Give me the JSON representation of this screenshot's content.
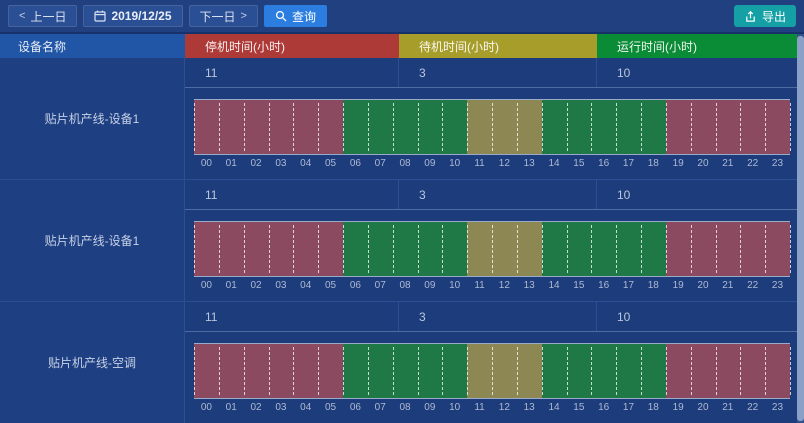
{
  "toolbar": {
    "prev_chevron": "<",
    "prev_label": "上一日",
    "date_value": "2019/12/25",
    "next_label": "下一日",
    "next_chevron": ">",
    "query_label": "查询",
    "export_label": "导出"
  },
  "colors": {
    "query_button": "#2b7de0",
    "export_button": "#14a0a5",
    "header_stop": "#ad3a37",
    "header_standby": "#a79d2a",
    "header_run": "#0a8b36",
    "status": {
      "stop": "#8b4a60",
      "standby": "#8d8853",
      "run": "#1e7947"
    }
  },
  "table": {
    "name_header": "设备名称",
    "columns": [
      {
        "key": "stop",
        "label": "停机时间(小时)",
        "color": "#ad3a37"
      },
      {
        "key": "standby",
        "label": "待机时间(小时)",
        "color": "#a79d2a"
      },
      {
        "key": "run",
        "label": "运行时间(小时)",
        "color": "#0a8b36"
      }
    ]
  },
  "hours": [
    "00",
    "01",
    "02",
    "03",
    "04",
    "05",
    "06",
    "07",
    "08",
    "09",
    "10",
    "11",
    "12",
    "13",
    "14",
    "15",
    "16",
    "17",
    "18",
    "19",
    "20",
    "21",
    "22",
    "23"
  ],
  "rows": [
    {
      "device": "贴片机产线-设备1",
      "values": {
        "stop": "11",
        "standby": "3",
        "run": "10"
      },
      "segments": [
        {
          "status": "stop",
          "start": 0,
          "end": 6
        },
        {
          "status": "run",
          "start": 6,
          "end": 11
        },
        {
          "status": "standby",
          "start": 11,
          "end": 14
        },
        {
          "status": "run",
          "start": 14,
          "end": 19
        },
        {
          "status": "stop",
          "start": 19,
          "end": 24
        }
      ]
    },
    {
      "device": "贴片机产线-设备1",
      "values": {
        "stop": "11",
        "standby": "3",
        "run": "10"
      },
      "segments": [
        {
          "status": "stop",
          "start": 0,
          "end": 6
        },
        {
          "status": "run",
          "start": 6,
          "end": 11
        },
        {
          "status": "standby",
          "start": 11,
          "end": 14
        },
        {
          "status": "run",
          "start": 14,
          "end": 19
        },
        {
          "status": "stop",
          "start": 19,
          "end": 24
        }
      ]
    },
    {
      "device": "贴片机产线-空调",
      "values": {
        "stop": "11",
        "standby": "3",
        "run": "10"
      },
      "segments": [
        {
          "status": "stop",
          "start": 0,
          "end": 6
        },
        {
          "status": "run",
          "start": 6,
          "end": 11
        },
        {
          "status": "standby",
          "start": 11,
          "end": 14
        },
        {
          "status": "run",
          "start": 14,
          "end": 19
        },
        {
          "status": "stop",
          "start": 19,
          "end": 24
        }
      ]
    }
  ]
}
